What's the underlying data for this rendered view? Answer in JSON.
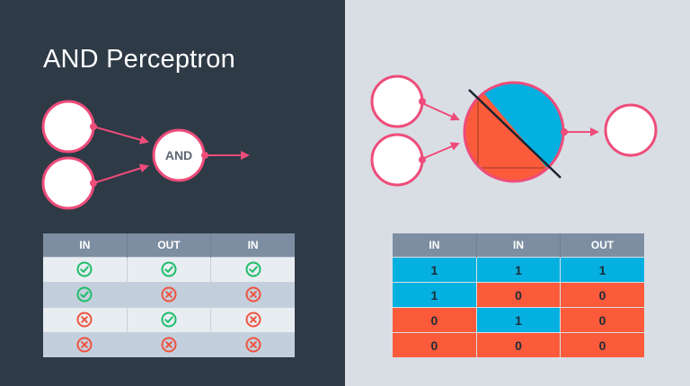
{
  "title": "AND Perceptron",
  "left_diagram": {
    "node_label": "AND"
  },
  "colors": {
    "dark_panel": "#2e3a46",
    "light_panel": "#d9dee5",
    "pink": "#ee4c7a",
    "blue": "#03b0e0",
    "orange_red": "#fb5b3a",
    "header_gray": "#7d8ea2",
    "check_green": "#1fbe69",
    "cross_red": "#f0533f"
  },
  "left_table": {
    "headers": [
      "IN",
      "OUT",
      "IN"
    ],
    "rows": [
      [
        "check-icon",
        "check-icon",
        "check-icon"
      ],
      [
        "check-icon",
        "cross-icon",
        "cross-icon"
      ],
      [
        "cross-icon",
        "check-icon",
        "cross-icon"
      ],
      [
        "cross-icon",
        "cross-icon",
        "cross-icon"
      ]
    ]
  },
  "right_table": {
    "headers": [
      "IN",
      "IN",
      "OUT"
    ],
    "rows": [
      [
        {
          "value": "1",
          "color": "blue"
        },
        {
          "value": "1",
          "color": "blue"
        },
        {
          "value": "1",
          "color": "blue"
        }
      ],
      [
        {
          "value": "1",
          "color": "blue"
        },
        {
          "value": "0",
          "color": "red"
        },
        {
          "value": "0",
          "color": "red"
        }
      ],
      [
        {
          "value": "0",
          "color": "red"
        },
        {
          "value": "1",
          "color": "blue"
        },
        {
          "value": "0",
          "color": "red"
        }
      ],
      [
        {
          "value": "0",
          "color": "red"
        },
        {
          "value": "0",
          "color": "red"
        },
        {
          "value": "0",
          "color": "red"
        }
      ]
    ]
  }
}
